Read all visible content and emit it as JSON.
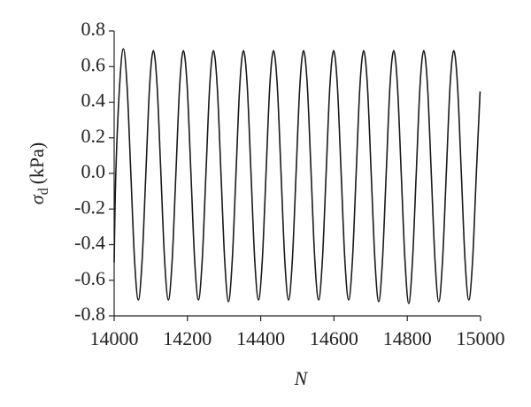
{
  "chart_data": {
    "type": "line",
    "xlabel": "N",
    "ylabel": {
      "symbol": "σ",
      "subscript": "d",
      "unit": "(kPa)"
    },
    "xlim": [
      14000,
      15000
    ],
    "ylim": [
      -0.8,
      0.8
    ],
    "xticks": [
      14000,
      14200,
      14400,
      14600,
      14800,
      15000
    ],
    "yticks": [
      -0.8,
      -0.6,
      -0.4,
      -0.2,
      {
        "value": 0,
        "label": "0.0"
      },
      0.2,
      0.4,
      0.6,
      0.8
    ],
    "grid": false,
    "series": [
      {
        "color": "#1a1a1a",
        "x": [
          14000,
          14004.5,
          14014.75,
          14025,
          14035.25,
          14045.5,
          14055.75,
          14066,
          14076.25,
          14086.5,
          14096.75,
          14107,
          14117.25,
          14127.5,
          14137.75,
          14148,
          14158.25,
          14168.5,
          14178.75,
          14189,
          14199.25,
          14209.5,
          14219.75,
          14230,
          14240.25,
          14250.5,
          14260.75,
          14271,
          14281.25,
          14291.5,
          14301.75,
          14312,
          14322.25,
          14332.5,
          14342.75,
          14353,
          14363.25,
          14373.5,
          14383.75,
          14394,
          14404.25,
          14414.5,
          14424.75,
          14435,
          14445.25,
          14455.5,
          14465.75,
          14476,
          14486.25,
          14496.5,
          14506.75,
          14517,
          14527.25,
          14537.5,
          14547.75,
          14558,
          14568.25,
          14578.5,
          14588.75,
          14599,
          14609.25,
          14619.5,
          14629.75,
          14640,
          14650.25,
          14660.5,
          14670.75,
          14681,
          14691.25,
          14701.5,
          14711.75,
          14722,
          14732.25,
          14742.5,
          14752.75,
          14763,
          14773.25,
          14783.5,
          14793.75,
          14804,
          14814.25,
          14824.5,
          14834.75,
          14845,
          14855.25,
          14865.5,
          14875.75,
          14886,
          14896.25,
          14906.5,
          14916.75,
          14927,
          14937.25,
          14947.5,
          14957.75,
          14968,
          14978.25,
          14988.5,
          14998.75
        ],
        "values": [
          -0.5,
          0,
          0.49,
          0.7,
          0.49,
          0,
          -0.49,
          -0.71,
          -0.49,
          0,
          0.49,
          0.69,
          0.49,
          0,
          -0.49,
          -0.71,
          -0.49,
          0,
          0.49,
          0.69,
          0.49,
          0,
          -0.49,
          -0.71,
          -0.49,
          0,
          0.49,
          0.69,
          0.49,
          0,
          -0.49,
          -0.72,
          -0.49,
          0,
          0.49,
          0.69,
          0.49,
          0,
          -0.49,
          -0.71,
          -0.49,
          0,
          0.49,
          0.69,
          0.49,
          0,
          -0.49,
          -0.71,
          -0.49,
          0,
          0.49,
          0.69,
          0.49,
          0,
          -0.49,
          -0.71,
          -0.49,
          0,
          0.49,
          0.69,
          0.49,
          0,
          -0.49,
          -0.71,
          -0.49,
          0,
          0.49,
          0.69,
          0.49,
          0,
          -0.49,
          -0.72,
          -0.49,
          0,
          0.49,
          0.69,
          0.49,
          0,
          -0.49,
          -0.73,
          -0.49,
          0,
          0.49,
          0.69,
          0.49,
          0,
          -0.49,
          -0.72,
          -0.49,
          0,
          0.49,
          0.69,
          0.49,
          0,
          -0.49,
          -0.71,
          -0.49,
          0,
          0.46
        ]
      }
    ]
  }
}
